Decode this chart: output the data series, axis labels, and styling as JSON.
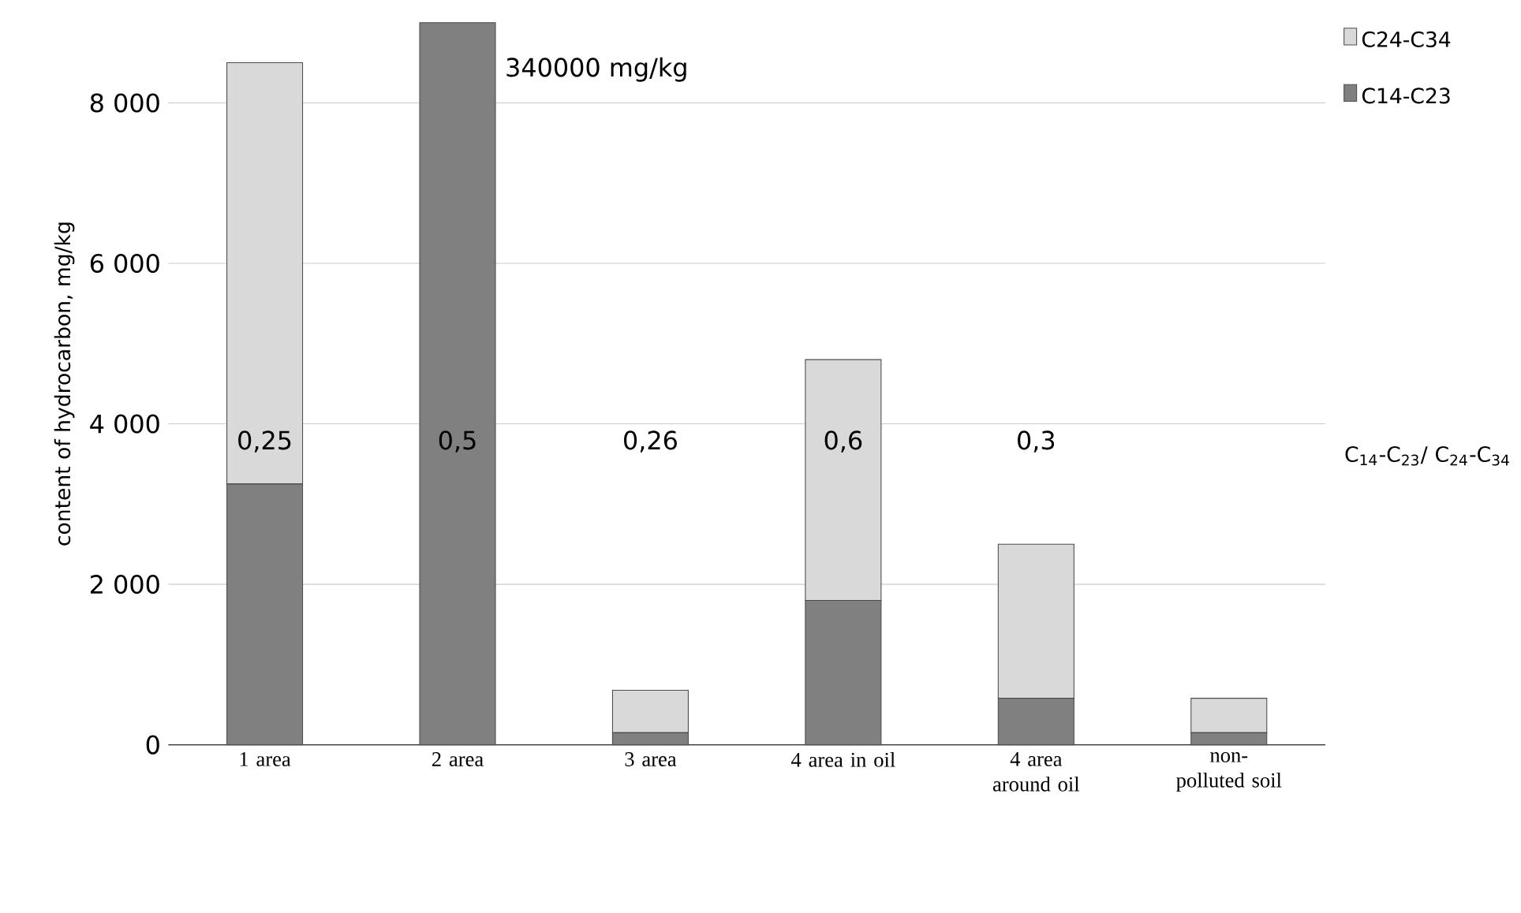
{
  "chart_data": {
    "type": "bar",
    "stacked": true,
    "ylabel": "content of hydrocarbon, mg/kg",
    "categories": [
      "1 area",
      "2 area",
      "3 area",
      "4 area in oil",
      "4 area around oil",
      "non-polluted soil"
    ],
    "series": [
      {
        "name": "C14-C23",
        "color": "#808080",
        "values": [
          3250,
          9000,
          150,
          1800,
          580,
          150
        ]
      },
      {
        "name": "C24-C34",
        "color": "#d9d9d9",
        "values": [
          5250,
          0,
          530,
          3000,
          1920,
          430
        ]
      }
    ],
    "ylim": [
      0,
      9000
    ],
    "yticks": [
      0,
      {
        "value": 2000,
        "label": "2 000"
      },
      {
        "value": 4000,
        "label": "4 000"
      },
      {
        "value": 6000,
        "label": "6 000"
      },
      {
        "value": 8000,
        "label": "8 000"
      }
    ],
    "grid": "y",
    "legend": "top right",
    "annotations": [
      "340000 mg/kg",
      "0,25",
      "0,5",
      "0,26",
      "0,6",
      "0,3",
      "C$_{14}$-C$_{23}$/ C$_{24}$-C$_{34}$"
    ]
  }
}
